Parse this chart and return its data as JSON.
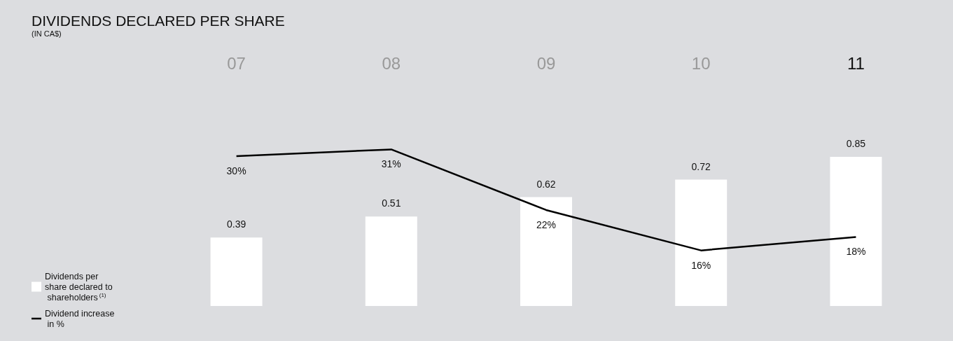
{
  "chart_data": {
    "type": "bar",
    "title": "DIVIDENDS DECLARED PER SHARE",
    "subtitle": "(IN CA$)",
    "categories": [
      "07",
      "08",
      "09",
      "10",
      "11"
    ],
    "series": [
      {
        "name": "Dividends per share declared to shareholders$^{(1)}$",
        "color": "#ffffff",
        "values": [
          0.39,
          0.51,
          0.62,
          0.72,
          0.85
        ]
      },
      {
        "name": "Dividend increase in %",
        "type": "line",
        "axis": "y2",
        "color": "#000000",
        "values": [
          30,
          31,
          22,
          16,
          18
        ],
        "value_labels": [
          "30%",
          "31%",
          "22%",
          "16%",
          "18%"
        ]
      }
    ],
    "data_labels": true,
    "legend": "bottom left",
    "marker": "none"
  }
}
